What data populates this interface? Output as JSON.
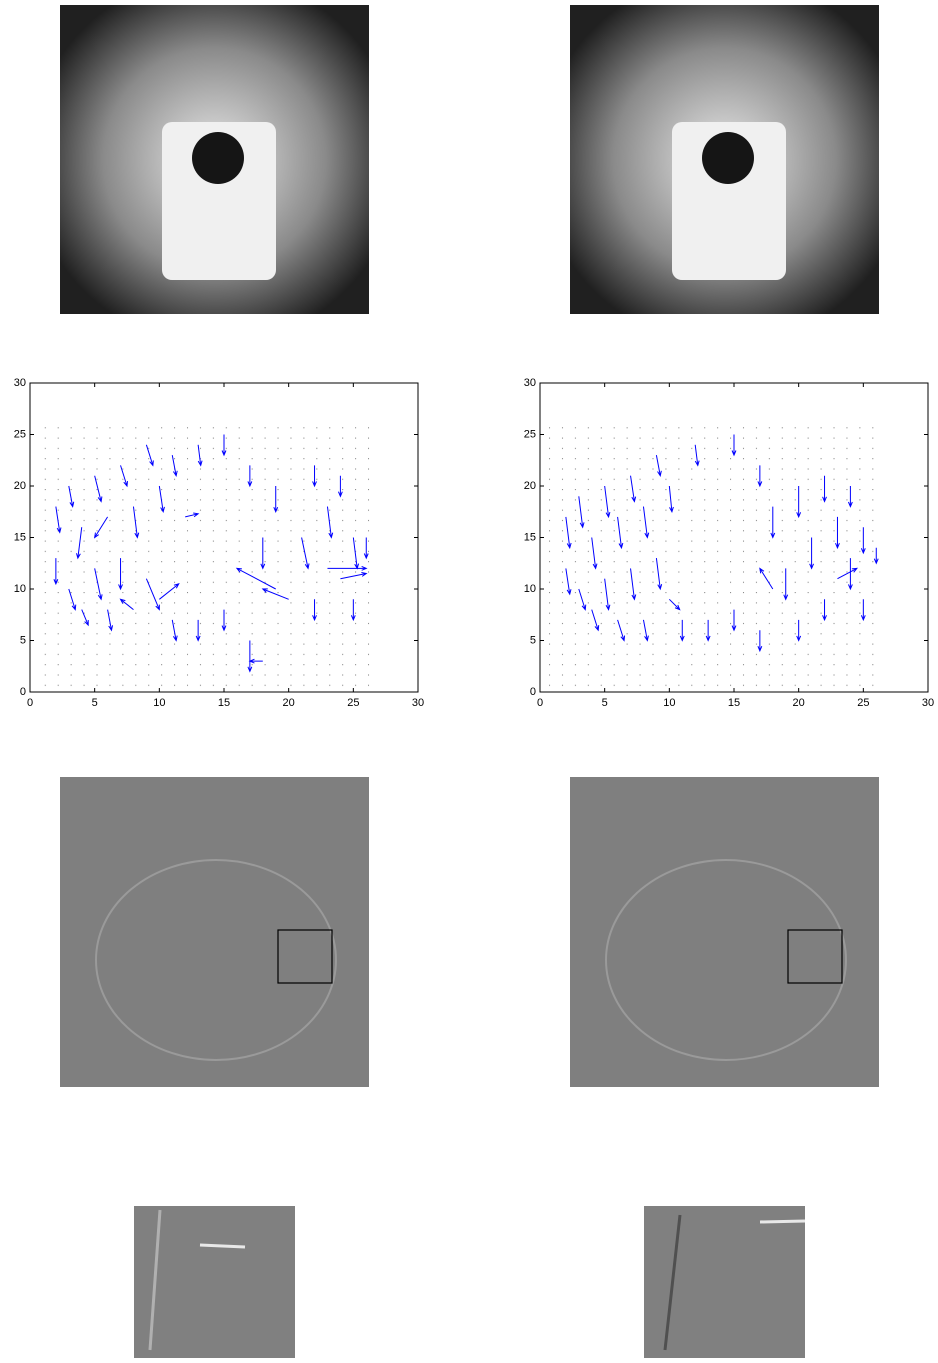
{
  "chart_data": [
    {
      "type": "quiver",
      "color": "#0000ff",
      "xlim": [
        0,
        30
      ],
      "ylim": [
        0,
        30
      ],
      "xticks": [
        0,
        5,
        10,
        15,
        20,
        25,
        30
      ],
      "yticks": [
        0,
        5,
        10,
        15,
        20,
        25,
        30
      ],
      "x": [
        2,
        2,
        3,
        3,
        4,
        4,
        5,
        5,
        6,
        6,
        7,
        7,
        8,
        8,
        9,
        9,
        10,
        10,
        11,
        11,
        12,
        13,
        13,
        15,
        15,
        17,
        17,
        18,
        18,
        19,
        19,
        20,
        21,
        22,
        22,
        23,
        23,
        24,
        24,
        25,
        25,
        26
      ],
      "y": [
        18,
        13,
        10,
        20,
        16,
        8,
        21,
        12,
        17,
        8,
        22,
        13,
        18,
        8,
        24,
        11,
        20,
        9,
        23,
        7,
        17,
        24,
        7,
        25,
        8,
        22,
        5,
        3,
        15,
        10,
        20,
        9,
        15,
        22,
        9,
        18,
        12,
        11,
        21,
        15,
        9,
        15
      ],
      "u": [
        0.3,
        0,
        0.5,
        0.3,
        -0.3,
        0.5,
        0.5,
        0.5,
        -1,
        0.3,
        0.5,
        0,
        0.3,
        -1,
        0.5,
        1,
        0.3,
        1.5,
        0.3,
        0.3,
        1,
        0.2,
        0,
        0,
        0,
        0,
        0,
        -1,
        0,
        -3,
        0,
        -2,
        0.5,
        0,
        0,
        0.3,
        3,
        2,
        0,
        0.3,
        0,
        0
      ],
      "v": [
        -2.5,
        -2.5,
        -2,
        -2,
        -3,
        -1.5,
        -2.5,
        -3,
        -2,
        -2,
        -2,
        -3,
        -3,
        1,
        -2,
        -3,
        -2.5,
        1.5,
        -2,
        -2,
        0.3,
        -2,
        -2,
        -2,
        -2,
        -2,
        -3,
        0,
        -3,
        2,
        -2.5,
        1,
        -3,
        -2,
        -2,
        -3,
        0,
        0.5,
        -2,
        -3,
        -2,
        -2
      ]
    },
    {
      "type": "quiver",
      "color": "#0000ff",
      "xlim": [
        0,
        30
      ],
      "ylim": [
        0,
        30
      ],
      "xticks": [
        0,
        5,
        10,
        15,
        20,
        25,
        30
      ],
      "yticks": [
        0,
        5,
        10,
        15,
        20,
        25,
        30
      ],
      "x": [
        2,
        2,
        3,
        3,
        4,
        4,
        5,
        5,
        6,
        6,
        7,
        7,
        8,
        8,
        9,
        9,
        10,
        10,
        11,
        12,
        13,
        15,
        15,
        17,
        17,
        18,
        18,
        19,
        20,
        20,
        21,
        22,
        22,
        23,
        23,
        24,
        24,
        25,
        25,
        26
      ],
      "y": [
        17,
        12,
        19,
        10,
        15,
        8,
        20,
        11,
        17,
        7,
        21,
        12,
        18,
        7,
        23,
        13,
        20,
        9,
        7,
        24,
        7,
        25,
        8,
        22,
        6,
        10,
        18,
        12,
        20,
        7,
        15,
        21,
        9,
        17,
        11,
        20,
        13,
        16,
        9,
        14
      ],
      "u": [
        0.3,
        0.3,
        0.3,
        0.5,
        0.3,
        0.5,
        0.3,
        0.3,
        0.3,
        0.5,
        0.3,
        0.3,
        0.3,
        0.3,
        0.3,
        0.3,
        0.2,
        0.8,
        0,
        0.2,
        0,
        0,
        0,
        0,
        0,
        -1,
        0,
        0,
        0,
        0,
        0,
        0,
        0,
        0,
        1.5,
        0,
        0,
        0,
        0,
        0
      ],
      "v": [
        -3,
        -2.5,
        -3,
        -2,
        -3,
        -2,
        -3,
        -3,
        -3,
        -2,
        -2.5,
        -3,
        -3,
        -2,
        -2,
        -3,
        -2.5,
        -1,
        -2,
        -2,
        -2,
        -2,
        -2,
        -2,
        -2,
        2,
        -3,
        -3,
        -3,
        -2,
        -3,
        -2.5,
        -2,
        -3,
        1,
        -2,
        -3,
        -2.5,
        -2,
        -1.5
      ]
    }
  ]
}
